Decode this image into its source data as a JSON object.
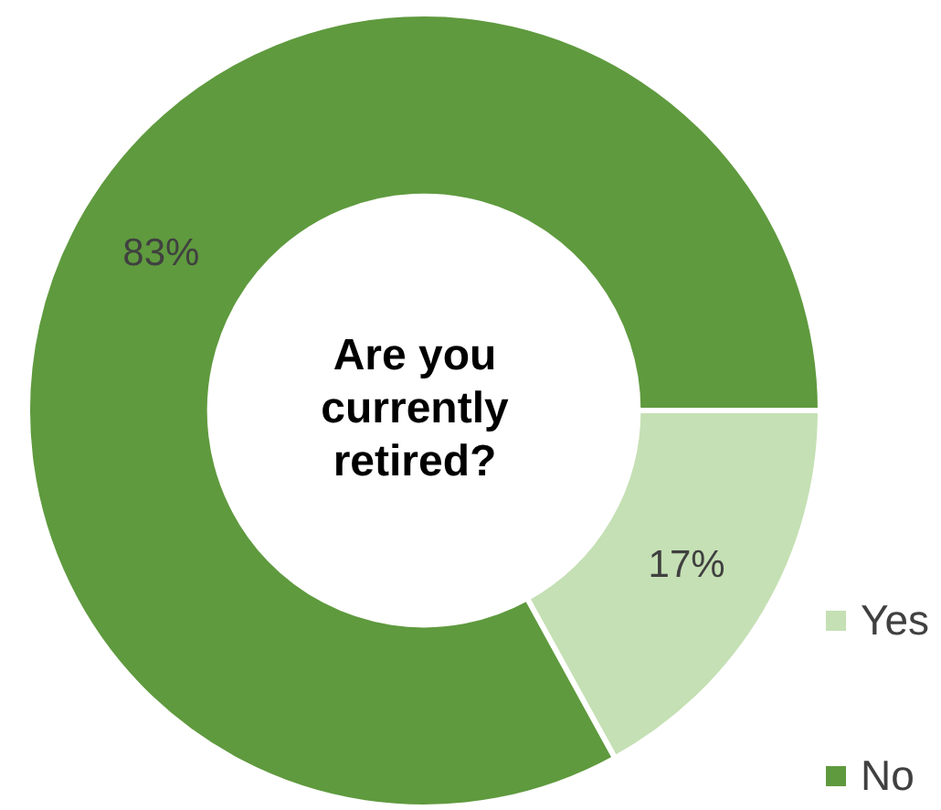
{
  "chart_data": {
    "type": "donut",
    "title": "Are you currently retired?",
    "categories": [
      "Yes",
      "No"
    ],
    "values": [
      17,
      83
    ],
    "colors": [
      "#c5e0b4",
      "#5f9a3e"
    ],
    "value_labels": [
      "17%",
      "83%"
    ],
    "legend": "bottom right"
  }
}
